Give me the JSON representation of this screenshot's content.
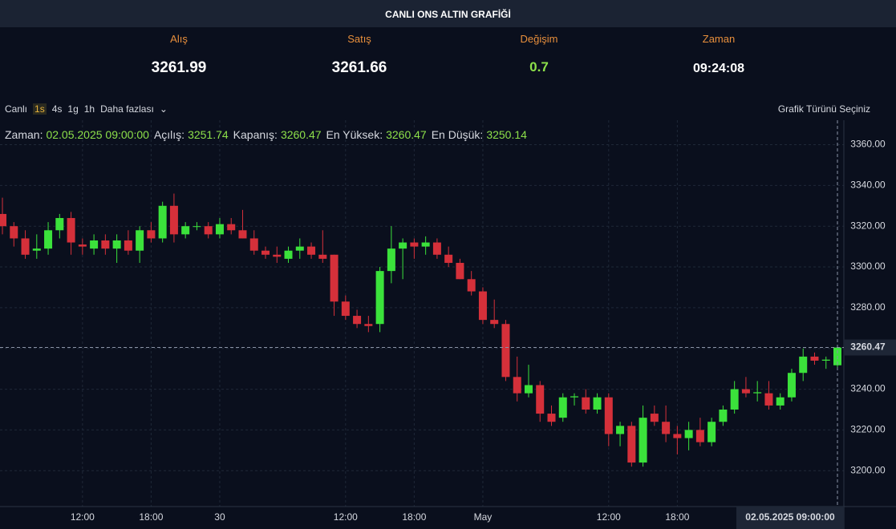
{
  "header": {
    "title": "CANLI ONS ALTIN GRAFİĞİ",
    "columns": [
      {
        "label": "Alış",
        "value": "3261.99"
      },
      {
        "label": "Satış",
        "value": "3261.66"
      },
      {
        "label": "Değişim",
        "value": "0.7"
      },
      {
        "label": "Zaman",
        "value": "09:24:08"
      }
    ]
  },
  "toolbar": {
    "items": [
      "Canlı",
      "1s",
      "4s",
      "1g",
      "1h",
      "Daha fazlası"
    ],
    "active": "1s",
    "chart_type": "Grafik Türünü Seçiniz"
  },
  "legend": {
    "time_label": "Zaman:",
    "open_label": "Açılış:",
    "close_label": "Kapanış:",
    "high_label": "En Yüksek:",
    "low_label": "En Düşük:"
  },
  "chart_data": {
    "type": "candlestick",
    "categories": [
      null,
      null,
      null,
      null,
      null,
      null,
      null,
      "12:00",
      null,
      null,
      null,
      null,
      null,
      "18:00",
      null,
      null,
      null,
      null,
      null,
      "30",
      null,
      null,
      null,
      null,
      null,
      null,
      null,
      null,
      null,
      null,
      "12:00",
      null,
      null,
      null,
      null,
      null,
      "18:00",
      null,
      null,
      null,
      null,
      null,
      "May",
      null,
      null,
      null,
      null,
      null,
      null,
      null,
      null,
      null,
      null,
      "12:00",
      null,
      null,
      null,
      null,
      null,
      "18:00",
      null,
      null,
      null,
      null,
      null,
      null,
      null,
      null,
      null,
      null,
      null,
      null,
      null,
      null
    ],
    "open": [
      3326,
      3320,
      3314,
      3308,
      3309,
      3318,
      3324,
      3311,
      3309,
      3313,
      3309,
      3313,
      3308,
      3318,
      3314,
      3330,
      3316,
      3320,
      3320,
      3316,
      3321,
      3318,
      3314,
      3308,
      3306,
      3304,
      3308,
      3310,
      3306,
      3306,
      3283,
      3276,
      3272,
      3272,
      3298,
      3309,
      3312,
      3310,
      3312,
      3306,
      3302,
      3294,
      3288,
      3274,
      3272,
      3246,
      3238,
      3242,
      3228,
      3226,
      3236,
      3236,
      3230,
      3236,
      3218,
      3222,
      3204,
      3228,
      3224,
      3218,
      3216,
      3220,
      3214,
      3224,
      3230,
      3240,
      3238,
      3238,
      3232,
      3236,
      3248,
      3256,
      3254,
      3251.74
    ],
    "high": [
      3334,
      3322,
      3318,
      3316,
      3322,
      3326,
      3327,
      3314,
      3316,
      3316,
      3316,
      3318,
      3320,
      3322,
      3332,
      3336,
      3322,
      3322,
      3322,
      3324,
      3324,
      3328,
      3318,
      3310,
      3310,
      3310,
      3314,
      3312,
      3318,
      3306,
      3286,
      3279,
      3276,
      3300,
      3320,
      3314,
      3314,
      3315,
      3314,
      3310,
      3304,
      3298,
      3290,
      3284,
      3274,
      3256,
      3252,
      3244,
      3232,
      3238,
      3238,
      3240,
      3238,
      3238,
      3224,
      3224,
      3232,
      3232,
      3232,
      3222,
      3224,
      3226,
      3226,
      3232,
      3244,
      3246,
      3244,
      3244,
      3238,
      3250,
      3260,
      3258,
      3256,
      3260.47
    ],
    "low": [
      3316,
      3310,
      3304,
      3304,
      3306,
      3314,
      3306,
      3306,
      3306,
      3306,
      3302,
      3306,
      3302,
      3312,
      3312,
      3312,
      3314,
      3318,
      3314,
      3314,
      3316,
      3314,
      3306,
      3304,
      3302,
      3302,
      3304,
      3304,
      3302,
      3276,
      3274,
      3270,
      3268,
      3268,
      3292,
      3294,
      3304,
      3306,
      3304,
      3300,
      3294,
      3286,
      3272,
      3270,
      3244,
      3234,
      3236,
      3224,
      3222,
      3224,
      3232,
      3228,
      3228,
      3212,
      3212,
      3202,
      3202,
      3222,
      3214,
      3208,
      3210,
      3212,
      3212,
      3222,
      3228,
      3236,
      3234,
      3230,
      3230,
      3234,
      3244,
      3252,
      3250,
      3250.14
    ],
    "close": [
      3320,
      3314,
      3306,
      3309,
      3318,
      3324,
      3312,
      3310,
      3313,
      3309,
      3313,
      3308,
      3318,
      3314,
      3330,
      3316,
      3320,
      3320,
      3316,
      3321,
      3318,
      3314,
      3308,
      3306,
      3305,
      3308,
      3310,
      3306,
      3304,
      3283,
      3276,
      3272,
      3271,
      3298,
      3309,
      3312,
      3310,
      3312,
      3306,
      3302,
      3294,
      3288,
      3274,
      3272,
      3246,
      3238,
      3242,
      3228,
      3224,
      3236,
      3236.5,
      3230,
      3236,
      3218,
      3222,
      3204,
      3226,
      3224,
      3218,
      3216,
      3220,
      3214,
      3224,
      3230,
      3240,
      3238,
      3238.5,
      3232,
      3236,
      3248,
      3256,
      3254,
      3254.5,
      3260.47
    ],
    "ylim": [
      3182.4,
      3372
    ],
    "yticks": [
      {
        "value": 3200,
        "label": "3200.00"
      },
      {
        "value": 3220,
        "label": "3220.00"
      },
      {
        "value": 3240,
        "label": "3240.00"
      },
      {
        "value": 3260,
        "label": "3260.00"
      },
      {
        "value": 3280,
        "label": "3280.00"
      },
      {
        "value": 3300,
        "label": "3300.00"
      },
      {
        "value": 3320,
        "label": "3320.00"
      },
      {
        "value": 3340,
        "label": "3340.00"
      },
      {
        "value": 3360,
        "label": "3360.00"
      }
    ],
    "crosshair_label": "02.05.2025 09:00:00",
    "up_color": "#3be23b",
    "down_color": "#d5303a",
    "grid": true
  }
}
